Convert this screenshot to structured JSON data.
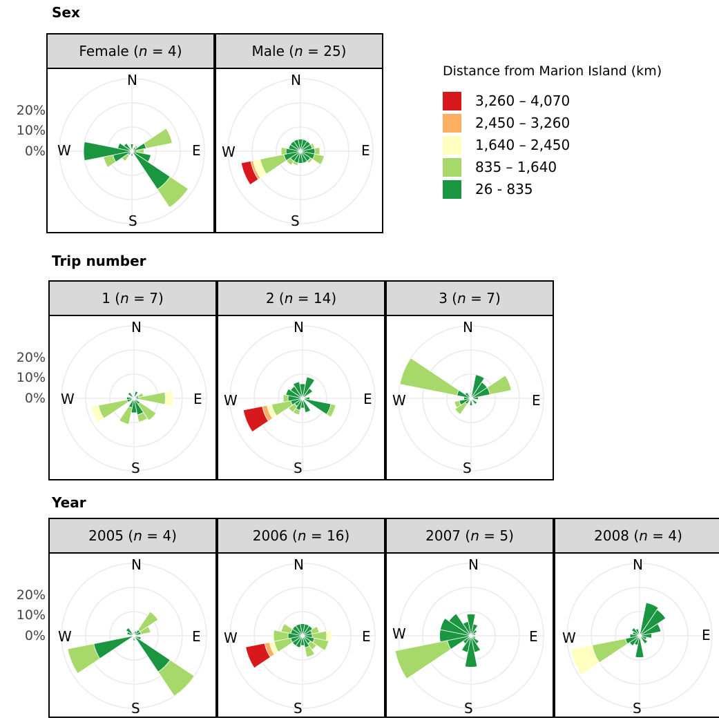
{
  "sections": [
    {
      "title": "Sex",
      "panels": [
        {
          "label": "Female (",
          "n": "n",
          "rest": " = 4)"
        },
        {
          "label": "Male (",
          "n": "n",
          "rest": " = 25)"
        }
      ]
    },
    {
      "title": "Trip number",
      "panels": [
        {
          "label": "1 (",
          "n": "n",
          "rest": " = 7)"
        },
        {
          "label": "2 (",
          "n": "n",
          "rest": " = 14)"
        },
        {
          "label": "3 (",
          "n": "n",
          "rest": " = 7)"
        }
      ]
    },
    {
      "title": "Year",
      "panels": [
        {
          "label": "2005 (",
          "n": "n",
          "rest": " = 4)"
        },
        {
          "label": "2006 (",
          "n": "n",
          "rest": " = 16)"
        },
        {
          "label": "2007 (",
          "n": "n",
          "rest": " = 5)"
        },
        {
          "label": "2008 (",
          "n": "n",
          "rest": " = 4)"
        }
      ]
    }
  ],
  "compass": {
    "n": "N",
    "e": "E",
    "s": "S",
    "w": "W"
  },
  "yticks": [
    "20%",
    "10%",
    "0%"
  ],
  "legend": {
    "title": "Distance from Marion Island (km)",
    "items": [
      {
        "label": "3,260 – 4,070",
        "color": "#d7191c"
      },
      {
        "label": "2,450 – 3,260",
        "color": "#fdae61"
      },
      {
        "label": "1,640 – 2,450",
        "color": "#ffffbf"
      },
      {
        "label": "835 – 1,640",
        "color": "#a6d96a"
      },
      {
        "label": "26 - 835",
        "color": "#1a9641"
      }
    ]
  },
  "chart_data": {
    "type": "wind-rose",
    "sector_width_deg": 22.5,
    "radial_range_percent": [
      0,
      30
    ],
    "radial_ticks_percent": [
      0,
      10,
      20
    ],
    "classes": [
      "26 - 835",
      "835 – 1,640",
      "1,640 – 2,450",
      "2,450 – 3,260",
      "3,260 – 4,070"
    ],
    "panels": [
      {
        "id": "female",
        "sectors": [
          {
            "bearing": 0,
            "v": [
              3
            ]
          },
          {
            "bearing": 45,
            "v": [
              2,
              1
            ]
          },
          {
            "bearing": 67.5,
            "v": [
              6,
              11
            ]
          },
          {
            "bearing": 90,
            "v": [
              2,
              3
            ]
          },
          {
            "bearing": 112.5,
            "v": [
              8
            ]
          },
          {
            "bearing": 135,
            "v": [
              19,
              9
            ]
          },
          {
            "bearing": 180,
            "v": [
              2
            ]
          },
          {
            "bearing": 225,
            "v": [
              2,
              3
            ]
          },
          {
            "bearing": 247.5,
            "v": [
              8,
              4
            ]
          },
          {
            "bearing": 270,
            "v": [
              20
            ]
          },
          {
            "bearing": 292.5,
            "v": [
              6
            ]
          },
          {
            "bearing": 315,
            "v": [
              4
            ]
          }
        ]
      },
      {
        "id": "male",
        "sectors": [
          {
            "bearing": 0,
            "v": [
              5
            ]
          },
          {
            "bearing": 22.5,
            "v": [
              5
            ]
          },
          {
            "bearing": 45,
            "v": [
              5
            ]
          },
          {
            "bearing": 67.5,
            "v": [
              5,
              1
            ]
          },
          {
            "bearing": 90,
            "v": [
              6,
              2
            ]
          },
          {
            "bearing": 112.5,
            "v": [
              6,
              4
            ]
          },
          {
            "bearing": 135,
            "v": [
              5,
              1
            ]
          },
          {
            "bearing": 157.5,
            "v": [
              5
            ]
          },
          {
            "bearing": 180,
            "v": [
              5
            ]
          },
          {
            "bearing": 202.5,
            "v": [
              5,
              1
            ]
          },
          {
            "bearing": 225,
            "v": [
              5,
              2
            ]
          },
          {
            "bearing": 247.5,
            "v": [
              7,
              10,
              3,
              1,
              4
            ]
          },
          {
            "bearing": 270,
            "v": [
              6,
              2
            ]
          },
          {
            "bearing": 292.5,
            "v": [
              5
            ]
          },
          {
            "bearing": 315,
            "v": [
              5
            ]
          },
          {
            "bearing": 337.5,
            "v": [
              5
            ]
          }
        ]
      },
      {
        "id": "trip1",
        "sectors": [
          {
            "bearing": 22.5,
            "v": [
              3
            ]
          },
          {
            "bearing": 67.5,
            "v": [
              2,
              2
            ]
          },
          {
            "bearing": 90,
            "v": [
              2,
              11,
              3
            ]
          },
          {
            "bearing": 135,
            "v": [
              3,
              8
            ]
          },
          {
            "bearing": 157.5,
            "v": [
              7,
              3
            ]
          },
          {
            "bearing": 180,
            "v": [
              6
            ]
          },
          {
            "bearing": 202.5,
            "v": [
              4,
              7
            ]
          },
          {
            "bearing": 247.5,
            "v": [
              3,
              12,
              3
            ]
          },
          {
            "bearing": 270,
            "v": [
              3
            ]
          },
          {
            "bearing": 315,
            "v": [
              3
            ]
          }
        ]
      },
      {
        "id": "trip2",
        "sectors": [
          {
            "bearing": 0,
            "v": [
              6
            ]
          },
          {
            "bearing": 22.5,
            "v": [
              9
            ]
          },
          {
            "bearing": 45,
            "v": [
              5
            ]
          },
          {
            "bearing": 90,
            "v": [
              3
            ]
          },
          {
            "bearing": 112.5,
            "v": [
              12,
              2
            ]
          },
          {
            "bearing": 157.5,
            "v": [
              6
            ]
          },
          {
            "bearing": 180,
            "v": [
              4
            ]
          },
          {
            "bearing": 202.5,
            "v": [
              5,
              2
            ]
          },
          {
            "bearing": 225,
            "v": [
              4,
              3
            ]
          },
          {
            "bearing": 247.5,
            "v": [
              5,
              8,
              2,
              2,
              8
            ]
          },
          {
            "bearing": 270,
            "v": [
              6,
              2
            ]
          },
          {
            "bearing": 292.5,
            "v": [
              7
            ]
          },
          {
            "bearing": 315,
            "v": [
              6
            ]
          },
          {
            "bearing": 337.5,
            "v": [
              7
            ]
          }
        ]
      },
      {
        "id": "trip3",
        "sectors": [
          {
            "bearing": 22.5,
            "v": [
              10
            ]
          },
          {
            "bearing": 45,
            "v": [
              8
            ]
          },
          {
            "bearing": 67.5,
            "v": [
              8,
              9
            ]
          },
          {
            "bearing": 90,
            "v": [
              3
            ]
          },
          {
            "bearing": 135,
            "v": [
              3
            ]
          },
          {
            "bearing": 180,
            "v": [
              3
            ]
          },
          {
            "bearing": 225,
            "v": [
              3,
              5
            ]
          },
          {
            "bearing": 247.5,
            "v": [
              5,
              2
            ]
          },
          {
            "bearing": 270,
            "v": [
              3
            ]
          },
          {
            "bearing": 292.5,
            "v": [
              6,
              24
            ]
          },
          {
            "bearing": 315,
            "v": [
              3
            ]
          }
        ]
      },
      {
        "id": "y2005",
        "sectors": [
          {
            "bearing": 22.5,
            "v": [
              2
            ]
          },
          {
            "bearing": 45,
            "v": [
              3,
              9
            ]
          },
          {
            "bearing": 67.5,
            "v": [
              3,
              4
            ]
          },
          {
            "bearing": 112.5,
            "v": [
              3
            ]
          },
          {
            "bearing": 135,
            "v": [
              18,
              12
            ]
          },
          {
            "bearing": 180,
            "v": [
              2
            ]
          },
          {
            "bearing": 247.5,
            "v": [
              17,
              11
            ]
          },
          {
            "bearing": 292.5,
            "v": [
              3
            ]
          },
          {
            "bearing": 315,
            "v": [
              4
            ]
          }
        ]
      },
      {
        "id": "y2006",
        "sectors": [
          {
            "bearing": 0,
            "v": [
              5
            ]
          },
          {
            "bearing": 22.5,
            "v": [
              5
            ]
          },
          {
            "bearing": 45,
            "v": [
              5
            ]
          },
          {
            "bearing": 67.5,
            "v": [
              4,
              3
            ]
          },
          {
            "bearing": 90,
            "v": [
              4,
              6,
              2
            ]
          },
          {
            "bearing": 112.5,
            "v": [
              5,
              6
            ]
          },
          {
            "bearing": 135,
            "v": [
              4,
              3
            ]
          },
          {
            "bearing": 157.5,
            "v": [
              5,
              4
            ]
          },
          {
            "bearing": 180,
            "v": [
              4
            ]
          },
          {
            "bearing": 202.5,
            "v": [
              5
            ]
          },
          {
            "bearing": 225,
            "v": [
              5
            ]
          },
          {
            "bearing": 247.5,
            "v": [
              5,
              7,
              2,
              2,
              8
            ]
          },
          {
            "bearing": 270,
            "v": [
              6,
              6
            ]
          },
          {
            "bearing": 292.5,
            "v": [
              5,
              4
            ]
          },
          {
            "bearing": 315,
            "v": [
              5
            ]
          },
          {
            "bearing": 337.5,
            "v": [
              5
            ]
          }
        ]
      },
      {
        "id": "y2007",
        "sectors": [
          {
            "bearing": 0,
            "v": [
              9
            ]
          },
          {
            "bearing": 22.5,
            "v": [
              5
            ]
          },
          {
            "bearing": 45,
            "v": [
              3
            ]
          },
          {
            "bearing": 67.5,
            "v": [
              2
            ]
          },
          {
            "bearing": 90,
            "v": [
              1
            ]
          },
          {
            "bearing": 112.5,
            "v": [
              2
            ]
          },
          {
            "bearing": 135,
            "v": [
              4
            ]
          },
          {
            "bearing": 157.5,
            "v": [
              7
            ]
          },
          {
            "bearing": 180,
            "v": [
              13
            ]
          },
          {
            "bearing": 202.5,
            "v": [
              7
            ]
          },
          {
            "bearing": 225,
            "v": [
              4
            ]
          },
          {
            "bearing": 247.5,
            "v": [
              10,
              22
            ]
          },
          {
            "bearing": 270,
            "v": [
              13
            ]
          },
          {
            "bearing": 292.5,
            "v": [
              13
            ]
          },
          {
            "bearing": 315,
            "v": [
              11
            ]
          },
          {
            "bearing": 337.5,
            "v": [
              6
            ]
          }
        ]
      },
      {
        "id": "y2008",
        "sectors": [
          {
            "bearing": 22.5,
            "v": [
              14
            ]
          },
          {
            "bearing": 45,
            "v": [
              13
            ]
          },
          {
            "bearing": 67.5,
            "v": [
              9
            ]
          },
          {
            "bearing": 90,
            "v": [
              5
            ]
          },
          {
            "bearing": 112.5,
            "v": [
              3
            ]
          },
          {
            "bearing": 135,
            "v": [
              4
            ]
          },
          {
            "bearing": 180,
            "v": [
              9
            ]
          },
          {
            "bearing": 202.5,
            "v": [
              4
            ]
          },
          {
            "bearing": 225,
            "v": [
              5
            ]
          },
          {
            "bearing": 247.5,
            "v": [
              6,
              14,
              9
            ]
          },
          {
            "bearing": 270,
            "v": [
              4
            ]
          },
          {
            "bearing": 292.5,
            "v": [
              3
            ]
          },
          {
            "bearing": 315,
            "v": [
              4
            ]
          },
          {
            "bearing": 337.5,
            "v": [
              3
            ]
          }
        ]
      }
    ]
  }
}
